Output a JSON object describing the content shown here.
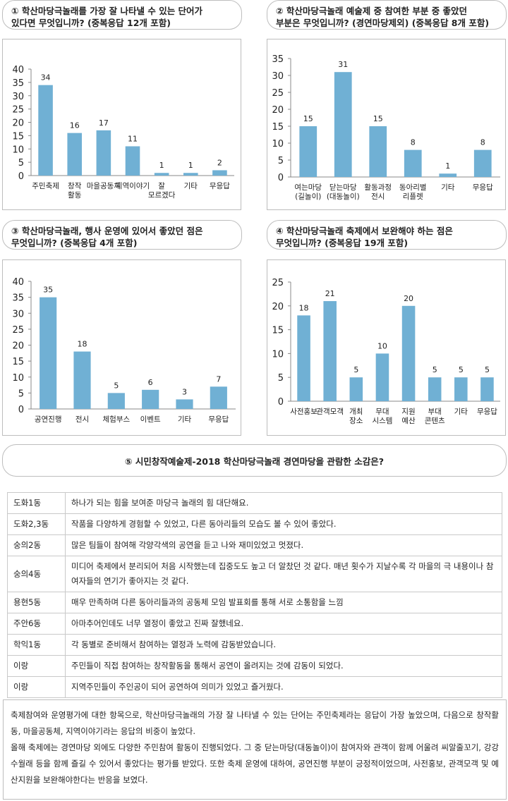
{
  "questions": [
    {
      "line1": "① 학산마당극놀래를 가장 잘 나타낼 수 있는 단어가",
      "line2": "있다면 무엇입니까? (중복응답 12개 포함)"
    },
    {
      "line1": "② 학산마당극놀래 예술제 중 참여한 부분 중 좋았던",
      "line2": "부분은 무엇입니까? (경연마당제외) (중복응답 8개 포함)"
    },
    {
      "line1": "③ 학산마당극놀래, 행사 운영에 있어서 좋았던 점은",
      "line2": "무엇입니까? (중복응답 4개 포함)"
    },
    {
      "line1": "④ 학산마당극놀래 축제에서 보완해야 하는 점은",
      "line2": "무엇입니까? (중복응답 19개 포함)"
    }
  ],
  "q5_title": "⑤ 시민창작예술제-2018 학산마당극놀래 경연마당을 관람한 소감은?",
  "bar_color": "#70b0d4",
  "chart_data": [
    {
      "type": "bar",
      "categories": [
        [
          "주민축제"
        ],
        [
          "창작",
          "활동"
        ],
        [
          "마을공동체"
        ],
        [
          "지역이야기"
        ],
        [
          "잘",
          "모르겠다"
        ],
        [
          "기타"
        ],
        [
          "무응답"
        ]
      ],
      "values": [
        34,
        16,
        17,
        11,
        1,
        1,
        2
      ],
      "ylim": [
        0,
        40
      ],
      "yticks": [
        0,
        5,
        10,
        15,
        20,
        25,
        30,
        35,
        40
      ]
    },
    {
      "type": "bar",
      "categories": [
        [
          "여는마당",
          "(길놀이)"
        ],
        [
          "닫는마당",
          "(대동놀이)"
        ],
        [
          "활동과정",
          "전시"
        ],
        [
          "동아리별",
          "리플렛"
        ],
        [
          "기타"
        ],
        [
          "무응답"
        ]
      ],
      "values": [
        15,
        31,
        15,
        8,
        1,
        8
      ],
      "ylim": [
        0,
        35
      ],
      "yticks": [
        0,
        5,
        10,
        15,
        20,
        25,
        30,
        35
      ]
    },
    {
      "type": "bar",
      "categories": [
        [
          "공연진행"
        ],
        [
          "전시"
        ],
        [
          "체험부스"
        ],
        [
          "이벤트"
        ],
        [
          "기타"
        ],
        [
          "무응답"
        ]
      ],
      "values": [
        35,
        18,
        5,
        6,
        3,
        7
      ],
      "ylim": [
        0,
        40
      ],
      "yticks": [
        0,
        5,
        10,
        15,
        20,
        25,
        30,
        35,
        40
      ]
    },
    {
      "type": "bar",
      "categories": [
        [
          "사전홍보"
        ],
        [
          "관객모객"
        ],
        [
          "개최",
          "장소"
        ],
        [
          "무대",
          "시스템"
        ],
        [
          "지원",
          "예산"
        ],
        [
          "부대",
          "콘텐츠"
        ],
        [
          "기타"
        ],
        [
          "무응답"
        ]
      ],
      "values": [
        18,
        21,
        5,
        10,
        20,
        5,
        5,
        5
      ],
      "ylim": [
        0,
        25
      ],
      "yticks": [
        0,
        5,
        10,
        15,
        20,
        25
      ]
    }
  ],
  "responses": [
    {
      "area": "도화1동",
      "text": "하나가 되는 힘을 보여준 마당극 놀래의 힘 대단해요."
    },
    {
      "area": "도화2,3동",
      "text": "작품을 다양하게 경험할 수 있었고, 다른 동아리들의 모습도 볼 수 있어 좋았다."
    },
    {
      "area": "숭의2동",
      "text": "많은 팀들이 참여해 각양각색의 공연을 듣고 나와 재미있었고 멋졌다."
    },
    {
      "area": "숭의4동",
      "text": "미디어 축제에서 분리되어 처음 시작했는데 집중도도 높고 더 알찼던 것 같다. 매년 횟수가 지날수록 각 마을의 극 내용이나 참여자들의 연기가 좋아지는 것 같다."
    },
    {
      "area": "용현5동",
      "text": "매우 만족하며 다른 동아리들과의 공동체 모임 발표회를 통해 서로 소통함을 느낌"
    },
    {
      "area": "주안6동",
      "text": "아마추어인데도 너무 열정이 좋았고 진짜 잘했네요."
    },
    {
      "area": "학익1동",
      "text": "각 동별로 준비해서 참여하는 열정과 노력에 감동받았습니다."
    },
    {
      "area": "이랑",
      "text": "주민들이 직접 참여하는 창작활동을 통해서 공연이 올려지는 것에 감동이 되었다."
    },
    {
      "area": "이랑",
      "text": "지역주민들이 주인공이 되어 공연하여 의미가 있었고 즐거웠다."
    }
  ],
  "summary": {
    "p1": "축제참여와 운영평가에 대한 항목으로, 학산마당극놀래의 가장 잘 나타낼 수 있는 단어는 주민축제라는 응답이 가장 높았으며, 다음으로 창작활동, 마을공동체, 지역이야기라는 응답의 비중이 높았다.",
    "p2": "올해 축제에는 경연마당 외에도 다양한 주민참여 활동이 진행되었다. 그 중 닫는마당(대동놀이)이 참여자와 관객이 함께 어울려 씨알줄꼬기, 강강수월래 등을 함께 즐길 수 있어서 좋았다는 평가를 받았다. 또한 축제 운영에 대하여, 공연진행 부분이 긍정적이었으며, 사전홍보, 관객모객 및 예산지원을 보완해야한다는 반응을 보였다."
  }
}
